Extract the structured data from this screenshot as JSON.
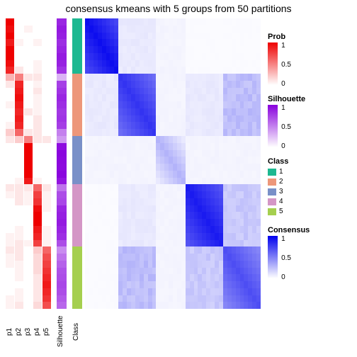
{
  "title": "consensus kmeans with 5 groups from 50 partitions",
  "n_rows": 42,
  "prob_columns": [
    "p1",
    "p2",
    "p3",
    "p4",
    "p5"
  ],
  "prob_color_low": "#ffffff",
  "prob_color_high": "#ee0000",
  "silhouette_color_low": "#ffffff",
  "silhouette_color_high": "#8800dd",
  "consensus_color_low": "#ffffff",
  "consensus_color_high": "#0000ee",
  "class_colors": {
    "1": "#1db891",
    "2": "#ed977a",
    "3": "#7990c8",
    "4": "#d496c6",
    "5": "#a5cf4f"
  },
  "class_labels": [
    "1",
    "2",
    "3",
    "4",
    "5"
  ],
  "class_assignment": [
    1,
    1,
    1,
    1,
    1,
    1,
    1,
    1,
    2,
    2,
    2,
    2,
    2,
    2,
    2,
    2,
    2,
    3,
    3,
    3,
    3,
    3,
    3,
    3,
    4,
    4,
    4,
    4,
    4,
    4,
    4,
    4,
    4,
    5,
    5,
    5,
    5,
    5,
    5,
    5,
    5,
    5
  ],
  "silhouette": [
    0.85,
    0.9,
    0.88,
    0.82,
    0.86,
    0.9,
    0.87,
    0.8,
    0.3,
    0.75,
    0.8,
    0.85,
    0.82,
    0.78,
    0.8,
    0.76,
    0.5,
    0.4,
    0.95,
    0.98,
    0.97,
    0.96,
    0.98,
    0.92,
    0.55,
    0.7,
    0.72,
    0.85,
    0.88,
    0.9,
    0.86,
    0.82,
    0.7,
    0.45,
    0.55,
    0.62,
    0.68,
    0.7,
    0.72,
    0.7,
    0.65,
    0.6
  ],
  "prob_matrix": [
    [
      1,
      0,
      0,
      0,
      0
    ],
    [
      0.95,
      0,
      0.05,
      0,
      0
    ],
    [
      1,
      0,
      0,
      0,
      0
    ],
    [
      0.9,
      0.05,
      0,
      0.05,
      0
    ],
    [
      1,
      0,
      0,
      0,
      0
    ],
    [
      1,
      0,
      0,
      0,
      0
    ],
    [
      0.95,
      0,
      0,
      0.05,
      0
    ],
    [
      0.85,
      0.1,
      0,
      0.05,
      0
    ],
    [
      0.3,
      0.5,
      0.1,
      0.1,
      0
    ],
    [
      0.1,
      0.85,
      0,
      0.05,
      0
    ],
    [
      0,
      0.9,
      0,
      0.1,
      0
    ],
    [
      0,
      0.95,
      0,
      0.05,
      0
    ],
    [
      0.05,
      0.9,
      0,
      0.05,
      0
    ],
    [
      0,
      0.85,
      0.1,
      0.05,
      0
    ],
    [
      0,
      0.9,
      0,
      0.1,
      0
    ],
    [
      0.05,
      0.85,
      0,
      0.1,
      0
    ],
    [
      0.2,
      0.6,
      0.1,
      0.1,
      0
    ],
    [
      0.1,
      0.2,
      0.5,
      0.1,
      0.1
    ],
    [
      0,
      0,
      1,
      0,
      0
    ],
    [
      0,
      0,
      1,
      0,
      0
    ],
    [
      0,
      0,
      1,
      0,
      0
    ],
    [
      0,
      0,
      1,
      0,
      0
    ],
    [
      0,
      0,
      1,
      0,
      0
    ],
    [
      0,
      0.05,
      0.9,
      0.05,
      0
    ],
    [
      0.1,
      0.1,
      0.1,
      0.6,
      0.1
    ],
    [
      0.05,
      0.1,
      0.05,
      0.75,
      0.05
    ],
    [
      0,
      0.1,
      0.05,
      0.8,
      0.05
    ],
    [
      0,
      0,
      0,
      0.95,
      0.05
    ],
    [
      0,
      0,
      0,
      1,
      0
    ],
    [
      0,
      0,
      0,
      1,
      0
    ],
    [
      0,
      0.05,
      0,
      0.9,
      0.05
    ],
    [
      0.05,
      0.05,
      0,
      0.85,
      0.05
    ],
    [
      0.05,
      0.1,
      0.05,
      0.75,
      0.05
    ],
    [
      0.1,
      0.1,
      0,
      0.2,
      0.6
    ],
    [
      0.05,
      0.1,
      0,
      0.15,
      0.7
    ],
    [
      0.05,
      0.05,
      0,
      0.15,
      0.75
    ],
    [
      0,
      0.05,
      0,
      0.15,
      0.8
    ],
    [
      0,
      0.05,
      0,
      0.1,
      0.85
    ],
    [
      0,
      0,
      0,
      0.1,
      0.9
    ],
    [
      0,
      0.05,
      0,
      0.1,
      0.85
    ],
    [
      0.05,
      0.05,
      0,
      0.1,
      0.8
    ],
    [
      0.05,
      0.1,
      0,
      0.15,
      0.7
    ]
  ],
  "block_boundaries": [
    0,
    8,
    17,
    24,
    33,
    42
  ],
  "consensus_blocks": [
    [
      [
        0.95,
        0.1,
        0.05,
        0.02,
        0.02
      ],
      [
        0.1,
        0.8,
        0.05,
        0.1,
        0.3
      ],
      [
        0.05,
        0.05,
        0.3,
        0.05,
        0.05
      ],
      [
        0.02,
        0.1,
        0.05,
        0.9,
        0.25
      ],
      [
        0.02,
        0.3,
        0.05,
        0.25,
        0.7
      ]
    ]
  ],
  "anno_labels": {
    "silhouette": "Silhouette",
    "class": "Class"
  },
  "legend_titles": {
    "prob": "Prob",
    "silhouette": "Silhouette",
    "class": "Class",
    "consensus": "Consensus"
  },
  "gradient_ticks": {
    "prob": [
      {
        "v": "1",
        "pos": 0
      },
      {
        "v": "0.5",
        "pos": 0.5
      },
      {
        "v": "0",
        "pos": 1
      }
    ],
    "silhouette": [
      {
        "v": "1",
        "pos": 0
      },
      {
        "v": "0.5",
        "pos": 0.5
      },
      {
        "v": "0",
        "pos": 1
      }
    ],
    "consensus": [
      {
        "v": "1",
        "pos": 0
      },
      {
        "v": "0.5",
        "pos": 0.5
      },
      {
        "v": "0",
        "pos": 1
      }
    ]
  }
}
